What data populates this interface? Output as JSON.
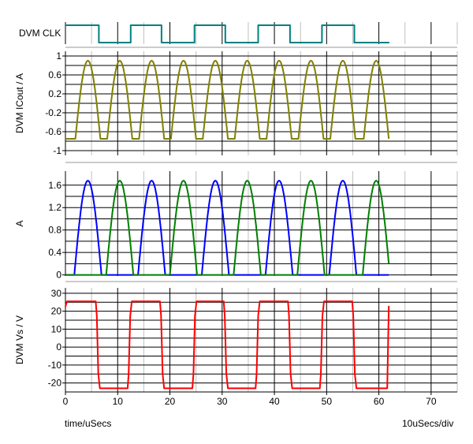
{
  "chart_data": [
    {
      "type": "line",
      "panel": "digital",
      "ylabel": "DVM CLK",
      "color": "#008080",
      "edges": [
        0,
        6.4,
        12.5,
        18.4,
        24.7,
        30.6,
        36.9,
        43.0,
        49.1,
        55.3,
        62.0
      ],
      "start_level": "high",
      "end_us": 62
    },
    {
      "type": "line",
      "panel": "analog",
      "ylabel": "DVM ICout / A",
      "ylim": [
        -1.1,
        1.1
      ],
      "yticks": [
        1,
        0.6,
        0.2,
        -0.2,
        -0.6,
        -1
      ],
      "ytick_labels": [
        "1",
        "0.6",
        "0.2",
        "-0.2",
        "-0.6",
        "-1"
      ],
      "series": [
        {
          "color": "#808000",
          "low": -0.75,
          "high": 0.9,
          "peaks_us": [
            4.3,
            10.4,
            16.5,
            22.6,
            28.7,
            34.8,
            40.9,
            47.0,
            53.1,
            59.5
          ],
          "end_us": 62
        }
      ]
    },
    {
      "type": "line",
      "panel": "analog",
      "ylabel": "A",
      "ylim": [
        -0.02,
        1.85
      ],
      "yticks": [
        1.6,
        1.2,
        0.8,
        0.4,
        0
      ],
      "ytick_labels": [
        "1.6",
        "1.2",
        "0.8",
        "0.4",
        "0"
      ],
      "series": [
        {
          "color": "#0000ff",
          "peak": 1.68,
          "peaks_us": [
            4.3,
            16.5,
            28.7,
            40.9,
            53.1
          ],
          "end_us": 62
        },
        {
          "color": "#008000",
          "peak": 1.68,
          "peaks_us": [
            10.4,
            22.6,
            34.8,
            47.0,
            59.5
          ],
          "end_us": 62
        }
      ]
    },
    {
      "type": "line",
      "panel": "analog",
      "ylabel": "DVM Vs / V",
      "ylim": [
        -25,
        33
      ],
      "yticks": [
        30,
        20,
        10,
        0,
        -10,
        -20
      ],
      "ytick_labels": [
        "30",
        "20",
        "10",
        "0",
        "-10",
        "-20"
      ],
      "series": [
        {
          "color": "#ff0000",
          "high": 25.5,
          "low": -23,
          "edges_us": [
            6.1,
            12.2,
            18.4,
            24.6,
            30.6,
            36.7,
            42.9,
            49.0,
            55.2,
            61.9
          ],
          "end_value": 23,
          "end_us": 62
        }
      ]
    }
  ],
  "x_axis": {
    "xlim": [
      0,
      75
    ],
    "ticks": [
      0,
      10,
      20,
      30,
      40,
      50,
      60,
      70
    ],
    "tick_labels": [
      "0",
      "10",
      "20",
      "30",
      "40",
      "50",
      "60",
      "70"
    ],
    "minor_step": 5,
    "xlabel": "time/uSecs",
    "scale_label": "10uSecs/div"
  }
}
